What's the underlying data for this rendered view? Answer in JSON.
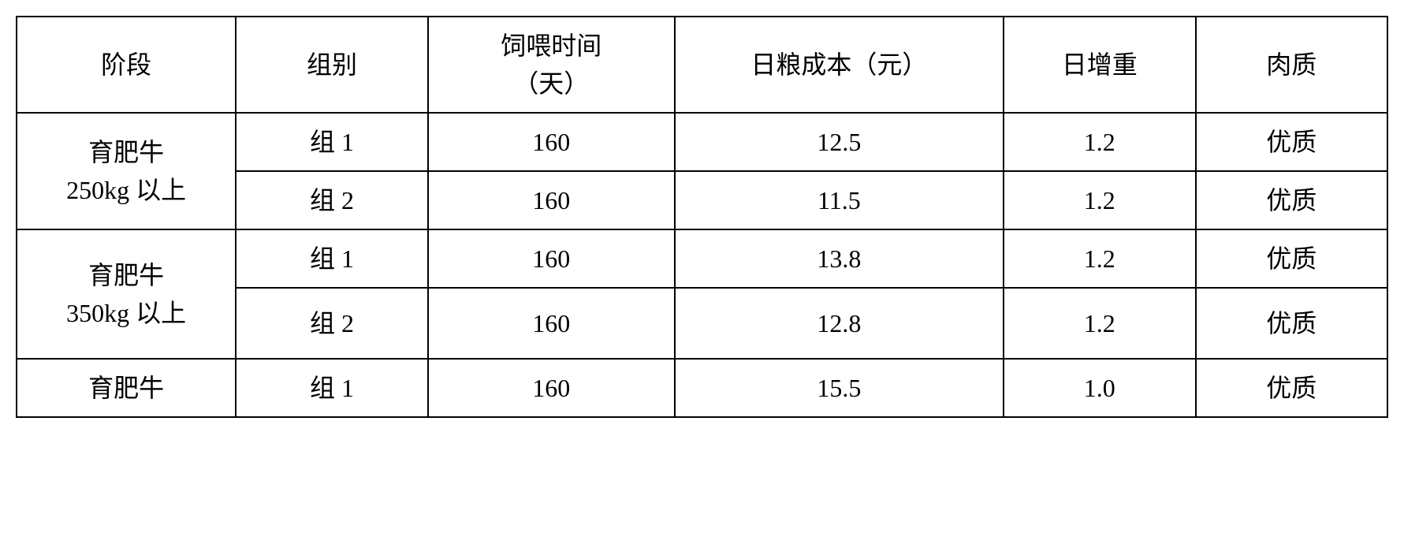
{
  "table": {
    "type": "table",
    "background_color": "#ffffff",
    "border_color": "#000000",
    "text_color": "#000000",
    "font_size": 32,
    "font_family": "SimSun",
    "columns": [
      {
        "key": "stage",
        "label": "阶段",
        "width": "16%",
        "align": "center"
      },
      {
        "key": "group",
        "label": "组别",
        "width": "14%",
        "align": "center"
      },
      {
        "key": "feed_time",
        "label": "饲喂时间（天）",
        "width": "18%",
        "align": "center"
      },
      {
        "key": "cost",
        "label": "日粮成本（元）",
        "width": "24%",
        "align": "center"
      },
      {
        "key": "gain",
        "label": "日增重",
        "width": "14%",
        "align": "center"
      },
      {
        "key": "quality",
        "label": "肉质",
        "width": "14%",
        "align": "center"
      }
    ],
    "header": {
      "stage": "阶段",
      "group": "组别",
      "feed_time": "饲喂时间\n（天）",
      "cost": "日粮成本（元）",
      "gain": "日增重",
      "quality": "肉质"
    },
    "stages": [
      {
        "label": "育肥牛\n250kg 以上",
        "rows": [
          {
            "group": "组 1",
            "feed_time": "160",
            "cost": "12.5",
            "gain": "1.2",
            "quality": "优质"
          },
          {
            "group": "组 2",
            "feed_time": "160",
            "cost": "11.5",
            "gain": "1.2",
            "quality": "优质"
          }
        ]
      },
      {
        "label": "育肥牛\n350kg 以上",
        "rows": [
          {
            "group": "组 1",
            "feed_time": "160",
            "cost": "13.8",
            "gain": "1.2",
            "quality": "优质"
          },
          {
            "group": "组 2",
            "feed_time": "160",
            "cost": "12.8",
            "gain": "1.2",
            "quality": "优质"
          }
        ]
      },
      {
        "label": "育肥牛",
        "rows": [
          {
            "group": "组 1",
            "feed_time": "160",
            "cost": "15.5",
            "gain": "1.0",
            "quality": "优质"
          }
        ]
      }
    ]
  }
}
